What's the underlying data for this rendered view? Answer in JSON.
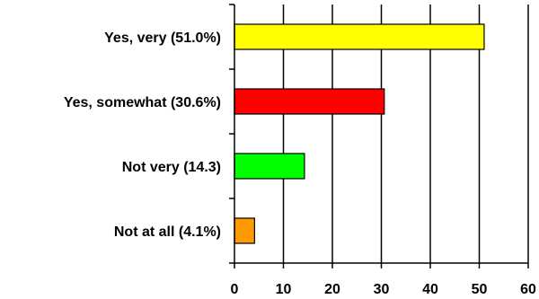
{
  "chart_data": {
    "type": "bar",
    "orientation": "horizontal",
    "categories": [
      "Yes, very (51.0%)",
      "Yes, somewhat (30.6%)",
      "Not very (14.3)",
      "Not at all (4.1%)"
    ],
    "values": [
      51.0,
      30.6,
      14.3,
      4.1
    ],
    "colors": [
      "#ffff00",
      "#ff0000",
      "#00ff00",
      "#ff9900"
    ],
    "xlim": [
      0,
      60
    ],
    "xticks": [
      0,
      10,
      20,
      30,
      40,
      50,
      60
    ],
    "grid": true,
    "title": "",
    "xlabel": "",
    "ylabel": ""
  }
}
